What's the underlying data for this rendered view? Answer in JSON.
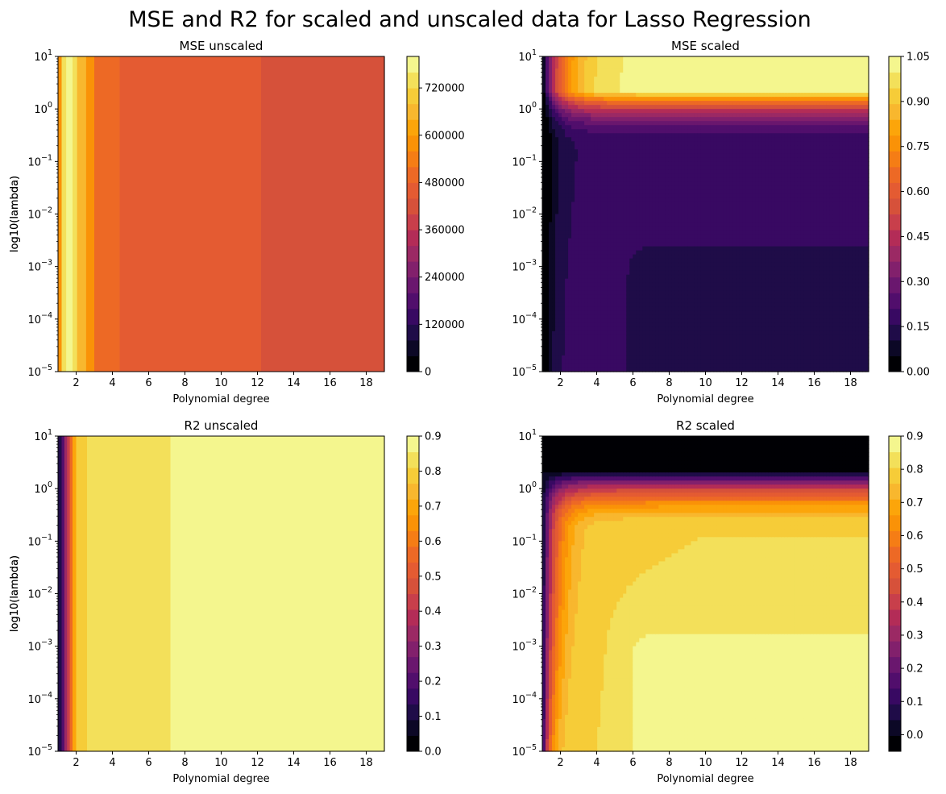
{
  "title": "MSE and R2 for scaled and unscaled data for Lasso Regression",
  "colors": {
    "inferno": [
      "#000004",
      "#0c0826",
      "#1f0c48",
      "#380962",
      "#510e6c",
      "#6a176e",
      "#82206c",
      "#9b2964",
      "#b32c57",
      "#c83f4b",
      "#d6513a",
      "#e45b32",
      "#ed6925",
      "#f57d15",
      "#fa9207",
      "#fca50a",
      "#f8b72e",
      "#f6cc38",
      "#f3e05a",
      "#f4f68e"
    ]
  },
  "chart_data": [
    {
      "type": "heatmap",
      "title": "MSE unscaled",
      "xlabel": "Polynomial degree",
      "ylabel": "log10(lambda)",
      "xlim": [
        1,
        19
      ],
      "y_scale": "log",
      "ylim": [
        1e-05,
        10
      ],
      "x_ticks": [
        "2",
        "4",
        "6",
        "8",
        "10",
        "12",
        "14",
        "16",
        "18"
      ],
      "y_ticks": [
        "10",
        "10",
        "10",
        "10",
        "10",
        "10",
        "10"
      ],
      "y_tick_exponents": [
        "1",
        "0",
        "−1",
        "−2",
        "−3",
        "−4",
        "−5"
      ],
      "colorbar": {
        "vmin": 0,
        "vmax": 800000,
        "levels": 20,
        "tick_values": [
          0,
          120000,
          240000,
          360000,
          480000,
          600000,
          720000
        ],
        "tick_labels": [
          "0",
          "120000",
          "240000",
          "360000",
          "480000",
          "600000",
          "720000"
        ]
      },
      "regions": [
        {
          "x": [
            1.0,
            1.2
          ],
          "level": 0.72
        },
        {
          "x": [
            1.2,
            1.45
          ],
          "level": 0.9
        },
        {
          "x": [
            1.45,
            1.8
          ],
          "level": 0.97
        },
        {
          "x": [
            1.8,
            2.05
          ],
          "level": 0.92
        },
        {
          "x": [
            2.05,
            2.55
          ],
          "level": 0.82
        },
        {
          "x": [
            2.55,
            3.0
          ],
          "level": 0.7
        },
        {
          "x": [
            3.0,
            4.4
          ],
          "level": 0.64
        },
        {
          "x": [
            4.4,
            6.15
          ],
          "level": 0.58
        },
        {
          "x": [
            6.15,
            12.2
          ],
          "level": 0.55
        },
        {
          "x": [
            12.2,
            19.0
          ],
          "level": 0.5
        }
      ]
    },
    {
      "type": "heatmap",
      "title": "MSE scaled",
      "xlabel": "Polynomial degree",
      "ylabel": "log10(lambda)",
      "xlim": [
        1,
        19
      ],
      "y_scale": "log",
      "ylim": [
        1e-05,
        10
      ],
      "x_ticks": [
        "2",
        "4",
        "6",
        "8",
        "10",
        "12",
        "14",
        "16",
        "18"
      ],
      "y_ticks": [
        "10",
        "10",
        "10",
        "10",
        "10",
        "10",
        "10"
      ],
      "y_tick_exponents": [
        "1",
        "0",
        "−1",
        "−2",
        "−3",
        "−4",
        "−5"
      ],
      "colorbar": {
        "vmin": 0,
        "vmax": 1.05,
        "levels": 20,
        "tick_values": [
          0,
          0.15,
          0.3,
          0.45,
          0.6,
          0.75,
          0.9,
          1.05
        ],
        "tick_labels": [
          "0.00",
          "0.15",
          "0.30",
          "0.45",
          "0.60",
          "0.75",
          "0.90",
          "1.05"
        ]
      }
    },
    {
      "type": "heatmap",
      "title": "R2 unscaled",
      "xlabel": "Polynomial degree",
      "ylabel": "log10(lambda)",
      "xlim": [
        1,
        19
      ],
      "y_scale": "log",
      "ylim": [
        1e-05,
        10
      ],
      "x_ticks": [
        "2",
        "4",
        "6",
        "8",
        "10",
        "12",
        "14",
        "16",
        "18"
      ],
      "y_ticks": [
        "10",
        "10",
        "10",
        "10",
        "10",
        "10",
        "10"
      ],
      "y_tick_exponents": [
        "1",
        "0",
        "−1",
        "−2",
        "−3",
        "−4",
        "−5"
      ],
      "colorbar": {
        "vmin": 0,
        "vmax": 0.9,
        "levels": 20,
        "tick_values": [
          0,
          0.1,
          0.2,
          0.3,
          0.4,
          0.5,
          0.6,
          0.7,
          0.8,
          0.9
        ],
        "tick_labels": [
          "0.0",
          "0.1",
          "0.2",
          "0.3",
          "0.4",
          "0.5",
          "0.6",
          "0.7",
          "0.8",
          "0.9"
        ]
      },
      "regions": [
        {
          "x": [
            1.0,
            1.2
          ],
          "level": 0.1
        },
        {
          "x": [
            1.2,
            1.35
          ],
          "level": 0.22
        },
        {
          "x": [
            1.35,
            1.5
          ],
          "level": 0.35
        },
        {
          "x": [
            1.5,
            1.65
          ],
          "level": 0.48
        },
        {
          "x": [
            1.65,
            1.8
          ],
          "level": 0.62
        },
        {
          "x": [
            1.8,
            2.0
          ],
          "level": 0.78
        },
        {
          "x": [
            2.0,
            2.6
          ],
          "level": 0.86
        },
        {
          "x": [
            2.6,
            7.2
          ],
          "level": 0.9
        },
        {
          "x": [
            7.2,
            19.0
          ],
          "level": 0.97
        }
      ]
    },
    {
      "type": "heatmap",
      "title": "R2 scaled",
      "xlabel": "Polynomial degree",
      "ylabel": "log10(lambda)",
      "xlim": [
        1,
        19
      ],
      "y_scale": "log",
      "ylim": [
        1e-05,
        10
      ],
      "x_ticks": [
        "2",
        "4",
        "6",
        "8",
        "10",
        "12",
        "14",
        "16",
        "18"
      ],
      "y_ticks": [
        "10",
        "10",
        "10",
        "10",
        "10",
        "10",
        "10"
      ],
      "y_tick_exponents": [
        "1",
        "0",
        "−1",
        "−2",
        "−3",
        "−4",
        "−5"
      ],
      "colorbar": {
        "vmin": -0.05,
        "vmax": 0.9,
        "levels": 20,
        "tick_values": [
          0,
          0.1,
          0.2,
          0.3,
          0.4,
          0.5,
          0.6,
          0.7,
          0.8,
          0.9
        ],
        "tick_labels": [
          "0.0",
          "0.1",
          "0.2",
          "0.3",
          "0.4",
          "0.5",
          "0.6",
          "0.7",
          "0.8",
          "0.9"
        ]
      }
    }
  ]
}
